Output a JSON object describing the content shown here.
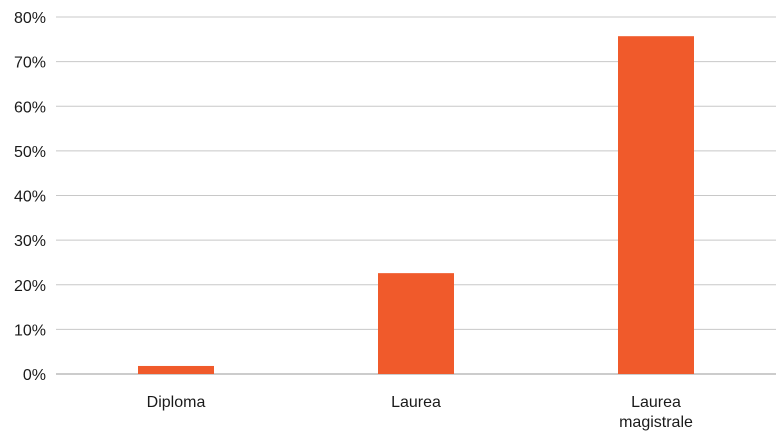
{
  "chart_data": {
    "type": "bar",
    "categories": [
      "Diploma",
      "Laurea",
      "Laurea magistrale"
    ],
    "category_label_lines": [
      [
        "Diploma"
      ],
      [
        "Laurea"
      ],
      [
        "Laurea",
        "magistrale"
      ]
    ],
    "values": [
      1.8,
      22.6,
      75.7
    ],
    "ylim": [
      0,
      80
    ],
    "yticks": [
      0,
      10,
      20,
      30,
      40,
      50,
      60,
      70,
      80
    ],
    "ytick_labels": [
      "0%",
      "10%",
      "20%",
      "30%",
      "40%",
      "50%",
      "60%",
      "70%",
      "80%"
    ],
    "grid": true,
    "bar_color": "#f05a2b"
  }
}
